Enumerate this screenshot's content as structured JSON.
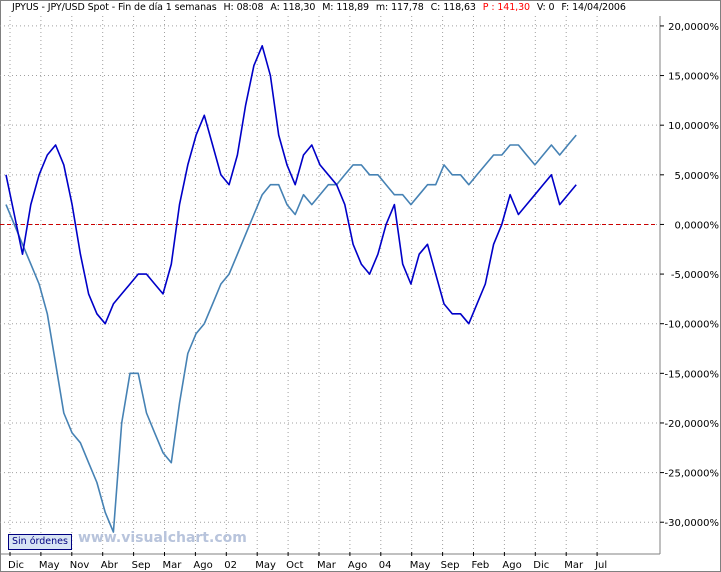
{
  "header": {
    "symbol": "JPYUS - JPY/USD Spot - Fin de día 1 semanas",
    "hour": "H: 08:08",
    "open": "A: 118,30",
    "max": "M: 118,89",
    "min": "m: 117,78",
    "close": "C: 118,63",
    "price": "P : 141,30",
    "volume": "V: 0",
    "date": "F: 14/04/2006"
  },
  "order_badge": "Sin órdenes",
  "watermark": "www.visualchart.com",
  "colors": {
    "series_primary": "#0000c8",
    "series_compare": "#4682b4",
    "zero_line": "#cc0000",
    "grid": "#a0a0a0",
    "price_highlight": "#ff0000"
  },
  "chart_data": {
    "type": "line",
    "title": "JPYUS - JPY/USD Spot",
    "y_unit": "%",
    "ylim": [
      -33,
      21
    ],
    "grid": true,
    "zero_line": true,
    "y_ticks": [
      20,
      15,
      10,
      5,
      0,
      -5,
      -10,
      -15,
      -20,
      -25,
      -30
    ],
    "y_tick_labels": [
      "20,0000%",
      "15,0000%",
      "10,0000%",
      "5,0000%",
      "0,0000%",
      "-5,0000%",
      "-10,0000%",
      "-15,0000%",
      "-20,0000%",
      "-25,0000%",
      "-30,0000%"
    ],
    "x_ticks": [
      "Dic",
      "May",
      "Nov",
      "Abr",
      "Sep",
      "Mar",
      "Ago",
      "02",
      "May",
      "Oct",
      "Mar",
      "Ago",
      "04",
      "May",
      "Sep",
      "Feb",
      "Ago",
      "Dic",
      "Mar",
      "Jul"
    ],
    "series": [
      {
        "values": [
          5,
          1,
          -3,
          2,
          5,
          7,
          8,
          6,
          2,
          -3,
          -7,
          -9,
          -10,
          -8,
          -7,
          -6,
          -5,
          -5,
          -6,
          -7,
          -4,
          2,
          6,
          9,
          11,
          8,
          5,
          4,
          7,
          12,
          16,
          18,
          15,
          9,
          6,
          4,
          7,
          8,
          6,
          5,
          4,
          2,
          -2,
          -4,
          -5,
          -3,
          0,
          2,
          -4,
          -6,
          -3,
          -2,
          -5,
          -8,
          -9,
          -9,
          -10,
          -8,
          -6,
          -2,
          0,
          3,
          1,
          2,
          3,
          4,
          5,
          2,
          3,
          4
        ]
      },
      {
        "values": [
          2,
          0,
          -2,
          -4,
          -6,
          -9,
          -14,
          -19,
          -21,
          -22,
          -24,
          -26,
          -29,
          -31,
          -20,
          -15,
          -15,
          -19,
          -21,
          -23,
          -24,
          -18,
          -13,
          -11,
          -10,
          -8,
          -6,
          -5,
          -3,
          -1,
          1,
          3,
          4,
          4,
          2,
          1,
          3,
          2,
          3,
          4,
          4,
          5,
          6,
          6,
          5,
          5,
          4,
          3,
          3,
          2,
          3,
          4,
          4,
          6,
          5,
          5,
          4,
          5,
          6,
          7,
          7,
          8,
          8,
          7,
          6,
          7,
          8,
          7,
          8,
          9
        ]
      }
    ]
  }
}
